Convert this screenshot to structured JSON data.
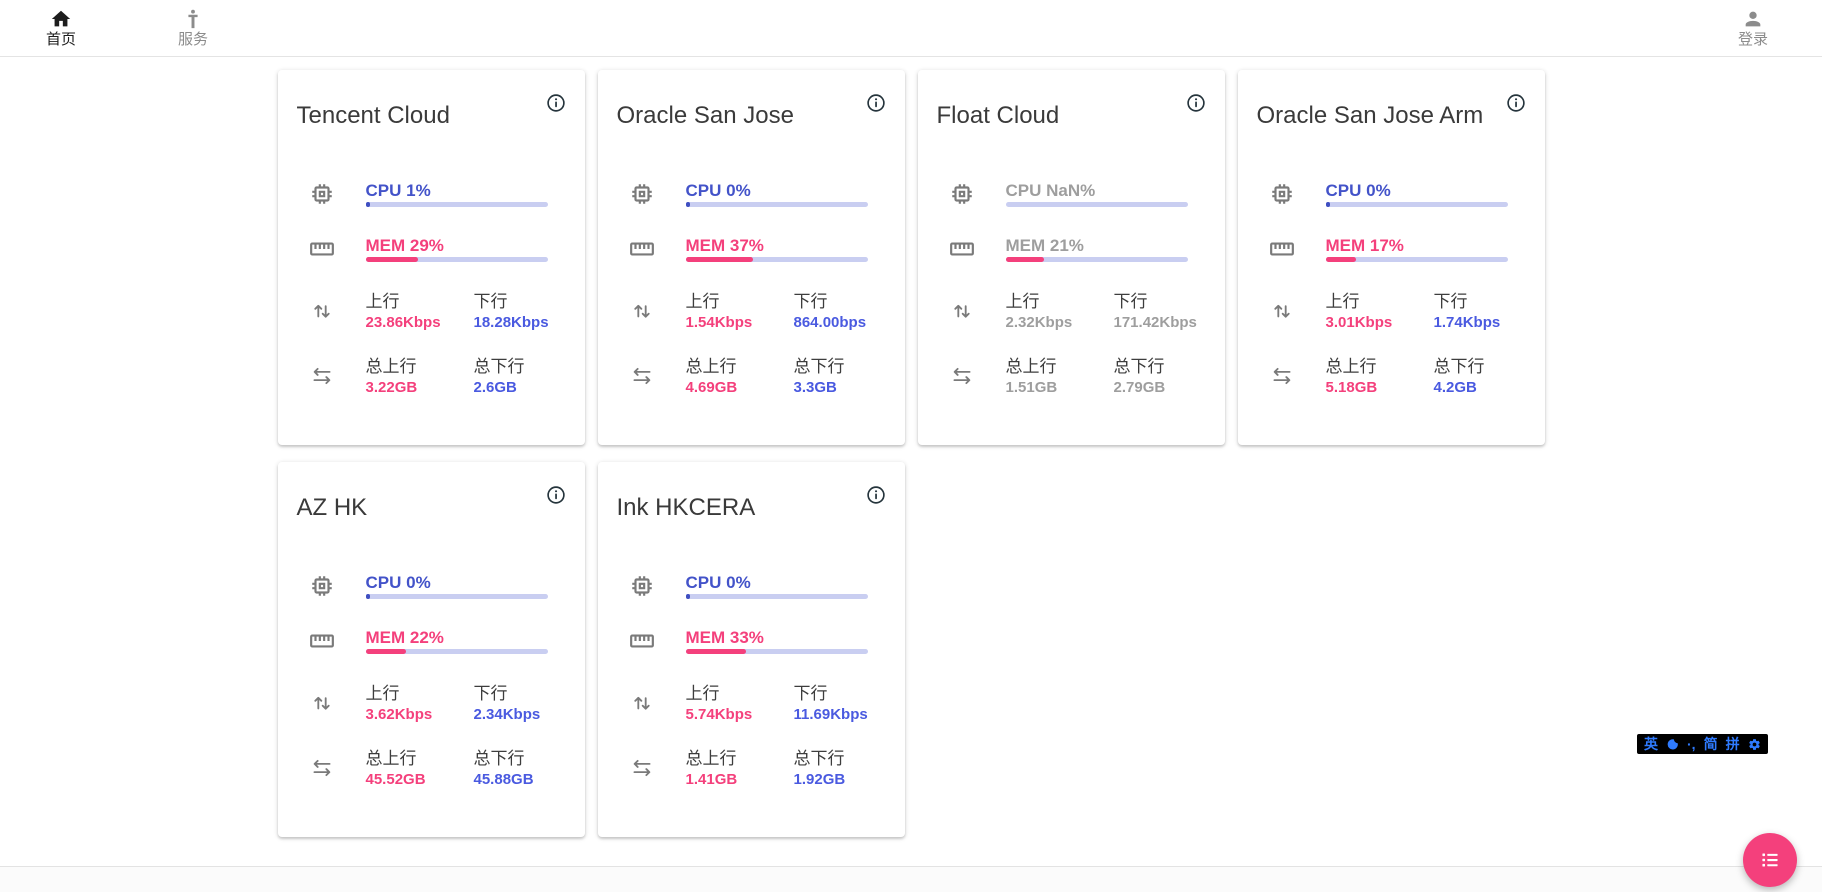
{
  "header": {
    "nav": [
      {
        "label": "首页"
      },
      {
        "label": "服务"
      }
    ],
    "login_label": "登录"
  },
  "labels": {
    "upload": "上行",
    "download": "下行",
    "total_upload": "总上行",
    "total_download": "总下行"
  },
  "servers": [
    {
      "name": "Tencent Cloud",
      "cpu_label": "CPU 1%",
      "cpu_pct": 1,
      "mem_label": "MEM 29%",
      "mem_pct": 29,
      "up": "23.86Kbps",
      "down": "18.28Kbps",
      "total_up": "3.22GB",
      "total_down": "2.6GB",
      "online": true
    },
    {
      "name": "Oracle San Jose",
      "cpu_label": "CPU 0%",
      "cpu_pct": 0,
      "mem_label": "MEM 37%",
      "mem_pct": 37,
      "up": "1.54Kbps",
      "down": "864.00bps",
      "total_up": "4.69GB",
      "total_down": "3.3GB",
      "online": true
    },
    {
      "name": "Float Cloud",
      "cpu_label": "CPU NaN%",
      "cpu_pct": null,
      "mem_label": "MEM 21%",
      "mem_pct": 21,
      "up": "2.32Kbps",
      "down": "171.42Kbps",
      "total_up": "1.51GB",
      "total_down": "2.79GB",
      "online": false
    },
    {
      "name": "Oracle San Jose Arm",
      "cpu_label": "CPU 0%",
      "cpu_pct": 0,
      "mem_label": "MEM 17%",
      "mem_pct": 17,
      "up": "3.01Kbps",
      "down": "1.74Kbps",
      "total_up": "5.18GB",
      "total_down": "4.2GB",
      "online": true
    },
    {
      "name": "AZ HK",
      "cpu_label": "CPU 0%",
      "cpu_pct": 0,
      "mem_label": "MEM 22%",
      "mem_pct": 22,
      "up": "3.62Kbps",
      "down": "2.34Kbps",
      "total_up": "45.52GB",
      "total_down": "45.88GB",
      "online": true
    },
    {
      "name": "Ink HKCERA",
      "cpu_label": "CPU 0%",
      "cpu_pct": 0,
      "mem_label": "MEM 33%",
      "mem_pct": 33,
      "up": "5.74Kbps",
      "down": "11.69Kbps",
      "total_up": "1.41GB",
      "total_down": "1.92GB",
      "online": true
    }
  ],
  "ime": {
    "lang": "英",
    "punct": "·,",
    "charset": "简",
    "scheme": "拼"
  },
  "colors": {
    "accent_pink": "#f4407c",
    "accent_indigo": "#4353c9",
    "value_blue": "#4a5ae0",
    "bar_track": "#c9cef1",
    "offline_gray": "#9e9e9e"
  }
}
